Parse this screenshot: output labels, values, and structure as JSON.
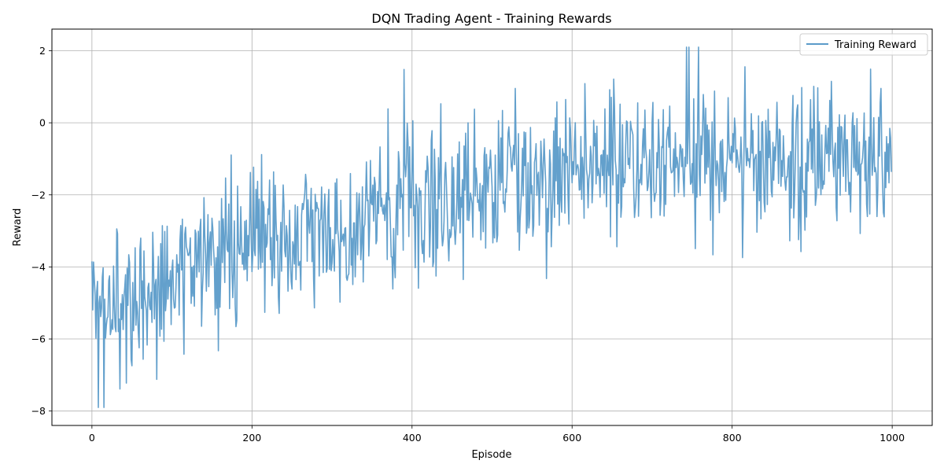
{
  "chart_data": {
    "type": "line",
    "title": "DQN Trading Agent - Training Rewards",
    "xlabel": "Episode",
    "ylabel": "Reward",
    "xlim": [
      -50,
      1050
    ],
    "ylim": [
      -8.4,
      2.6
    ],
    "x_ticks": [
      0,
      200,
      400,
      600,
      800,
      1000
    ],
    "y_ticks": [
      -8,
      -6,
      -4,
      -2,
      0,
      2
    ],
    "grid": true,
    "legend_position": "top-right",
    "series": [
      {
        "name": "Training Reward",
        "color": "#5b9bc9",
        "episodes": [
          0,
          999
        ],
        "trend": [
          [
            0,
            -5.4
          ],
          [
            50,
            -5.0
          ],
          [
            100,
            -4.3
          ],
          [
            150,
            -3.8
          ],
          [
            200,
            -3.4
          ],
          [
            250,
            -3.1
          ],
          [
            300,
            -2.8
          ],
          [
            350,
            -2.6
          ],
          [
            400,
            -2.3
          ],
          [
            450,
            -1.9
          ],
          [
            500,
            -1.7
          ],
          [
            550,
            -1.5
          ],
          [
            600,
            -1.3
          ],
          [
            650,
            -1.1
          ],
          [
            700,
            -1.0
          ],
          [
            750,
            -1.0
          ],
          [
            800,
            -1.0
          ],
          [
            850,
            -1.0
          ],
          [
            900,
            -1.0
          ],
          [
            950,
            -1.0
          ],
          [
            999,
            -1.2
          ]
        ],
        "noise_amplitude": 1.1,
        "approx_max": [
          758,
          2.1
        ],
        "approx_min": [
          8,
          -7.9
        ]
      }
    ]
  }
}
